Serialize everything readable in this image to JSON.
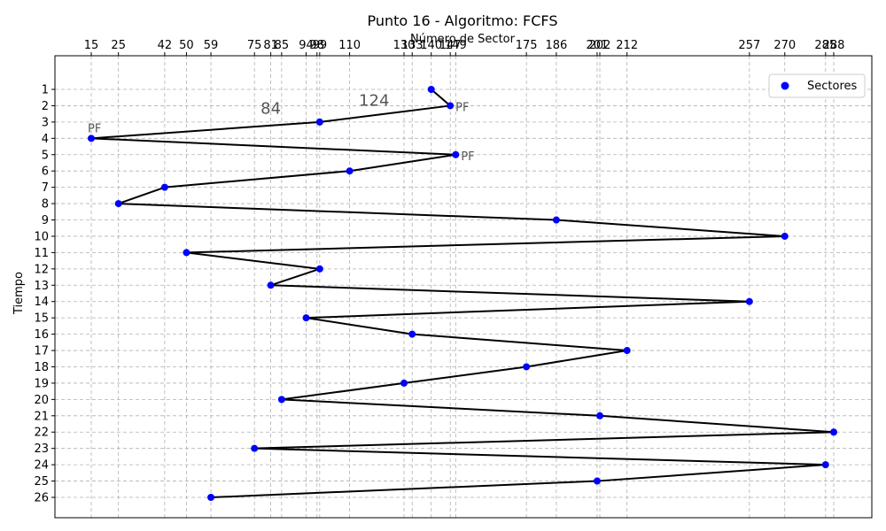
{
  "chart_data": {
    "type": "scatter",
    "title": "Punto 16 - Algoritmo: FCFS",
    "xlabel": "Número de Sector",
    "ylabel": "Tiempo",
    "x_ticks": [
      15,
      25,
      42,
      50,
      59,
      75,
      81,
      85,
      94,
      98,
      99,
      110,
      130,
      133,
      140,
      147,
      149,
      175,
      186,
      201,
      202,
      212,
      257,
      270,
      285,
      288
    ],
    "y_ticks": [
      1,
      2,
      3,
      4,
      5,
      6,
      7,
      8,
      9,
      10,
      11,
      12,
      13,
      14,
      15,
      16,
      17,
      18,
      19,
      20,
      21,
      22,
      23,
      24,
      25,
      26
    ],
    "xlim": [
      -0.5,
      303
    ],
    "ylim": [
      1,
      26
    ],
    "y_inverted": true,
    "x_axis_position": "top",
    "grid": true,
    "legend": {
      "position": "top-right",
      "entries": [
        "Sectores"
      ]
    },
    "series": [
      {
        "name": "Sectores",
        "color": "#0000ff",
        "points": [
          {
            "x": 140,
            "y": 1
          },
          {
            "x": 147,
            "y": 2
          },
          {
            "x": 99,
            "y": 3
          },
          {
            "x": 15,
            "y": 4
          },
          {
            "x": 149,
            "y": 5
          },
          {
            "x": 110,
            "y": 6
          },
          {
            "x": 42,
            "y": 7
          },
          {
            "x": 25,
            "y": 8
          },
          {
            "x": 186,
            "y": 9
          },
          {
            "x": 270,
            "y": 10
          },
          {
            "x": 50,
            "y": 11
          },
          {
            "x": 99,
            "y": 12
          },
          {
            "x": 81,
            "y": 13
          },
          {
            "x": 257,
            "y": 14
          },
          {
            "x": 94,
            "y": 15
          },
          {
            "x": 133,
            "y": 16
          },
          {
            "x": 212,
            "y": 17
          },
          {
            "x": 175,
            "y": 18
          },
          {
            "x": 130,
            "y": 19
          },
          {
            "x": 85,
            "y": 20
          },
          {
            "x": 202,
            "y": 21
          },
          {
            "x": 288,
            "y": 22
          },
          {
            "x": 75,
            "y": 23
          },
          {
            "x": 285,
            "y": 24
          },
          {
            "x": 201,
            "y": 25
          },
          {
            "x": 59,
            "y": 26
          }
        ]
      }
    ],
    "annotations": [
      {
        "text": "PF",
        "x": 147,
        "y": 2,
        "size": "small"
      },
      {
        "text": "PF",
        "x": 15,
        "y": 4,
        "size": "small"
      },
      {
        "text": "PF",
        "x": 149,
        "y": 5,
        "size": "small"
      },
      {
        "text": "84",
        "x": 81,
        "y": 2.5,
        "size": "large"
      },
      {
        "text": "124",
        "x": 119,
        "y": 2,
        "size": "large"
      }
    ]
  }
}
